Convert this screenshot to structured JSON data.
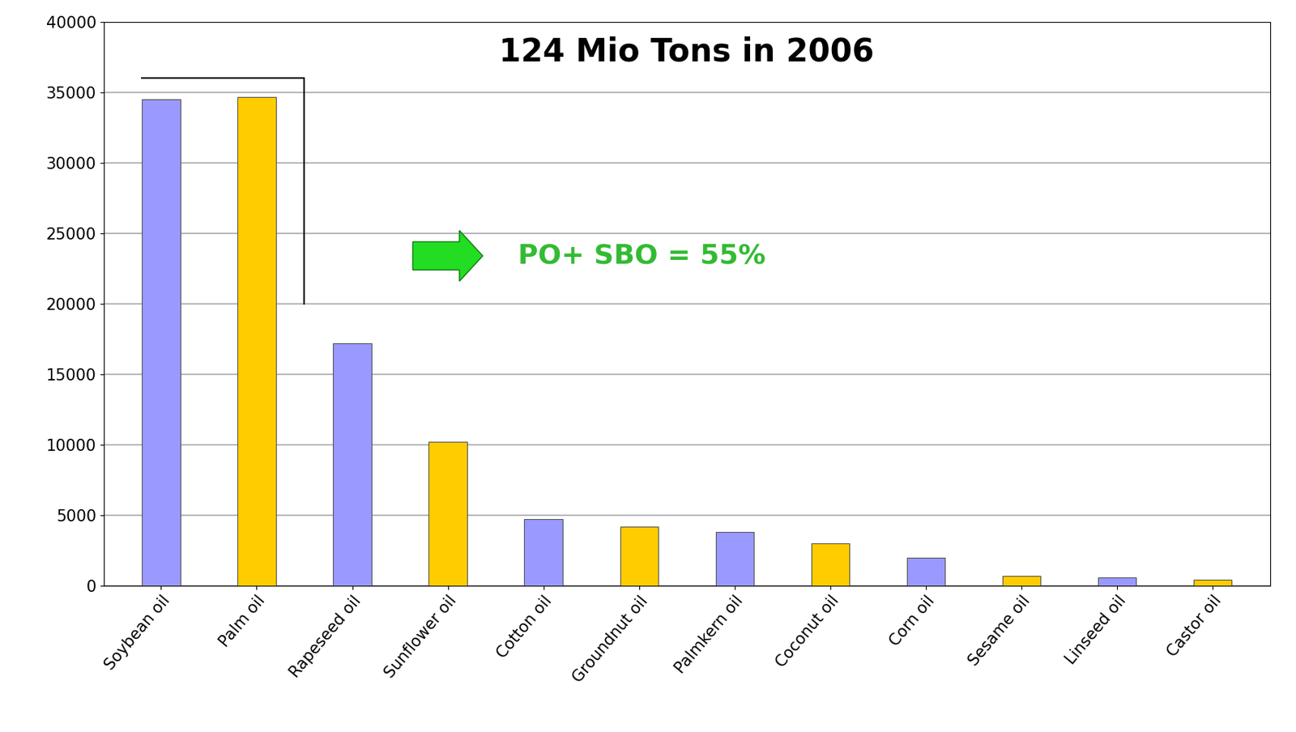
{
  "chart_data": {
    "type": "bar",
    "title": "124 Mio Tons in 2006",
    "annotation": "PO+ SBO = 55%",
    "categories": [
      "Soybean oil",
      "Palm oil",
      "Rapeseed oil",
      "Sunflower oil",
      "Cotton oil",
      "Groundnut oil",
      "Palmkern oil",
      "Coconut oil",
      "Corn oil",
      "Sesame oil",
      "Linseed oil",
      "Castor oil"
    ],
    "values": [
      34500,
      34700,
      17200,
      10200,
      4700,
      4200,
      3800,
      3000,
      2000,
      700,
      600,
      400
    ],
    "colors": [
      "#9999ff",
      "#ffcc00",
      "#9999ff",
      "#ffcc00",
      "#9999ff",
      "#ffcc00",
      "#9999ff",
      "#ffcc00",
      "#9999ff",
      "#ffcc00",
      "#9999ff",
      "#ffcc00"
    ],
    "ylim": [
      0,
      40000
    ],
    "yticks": [
      0,
      5000,
      10000,
      15000,
      20000,
      25000,
      30000,
      35000,
      40000
    ],
    "grid": true
  }
}
